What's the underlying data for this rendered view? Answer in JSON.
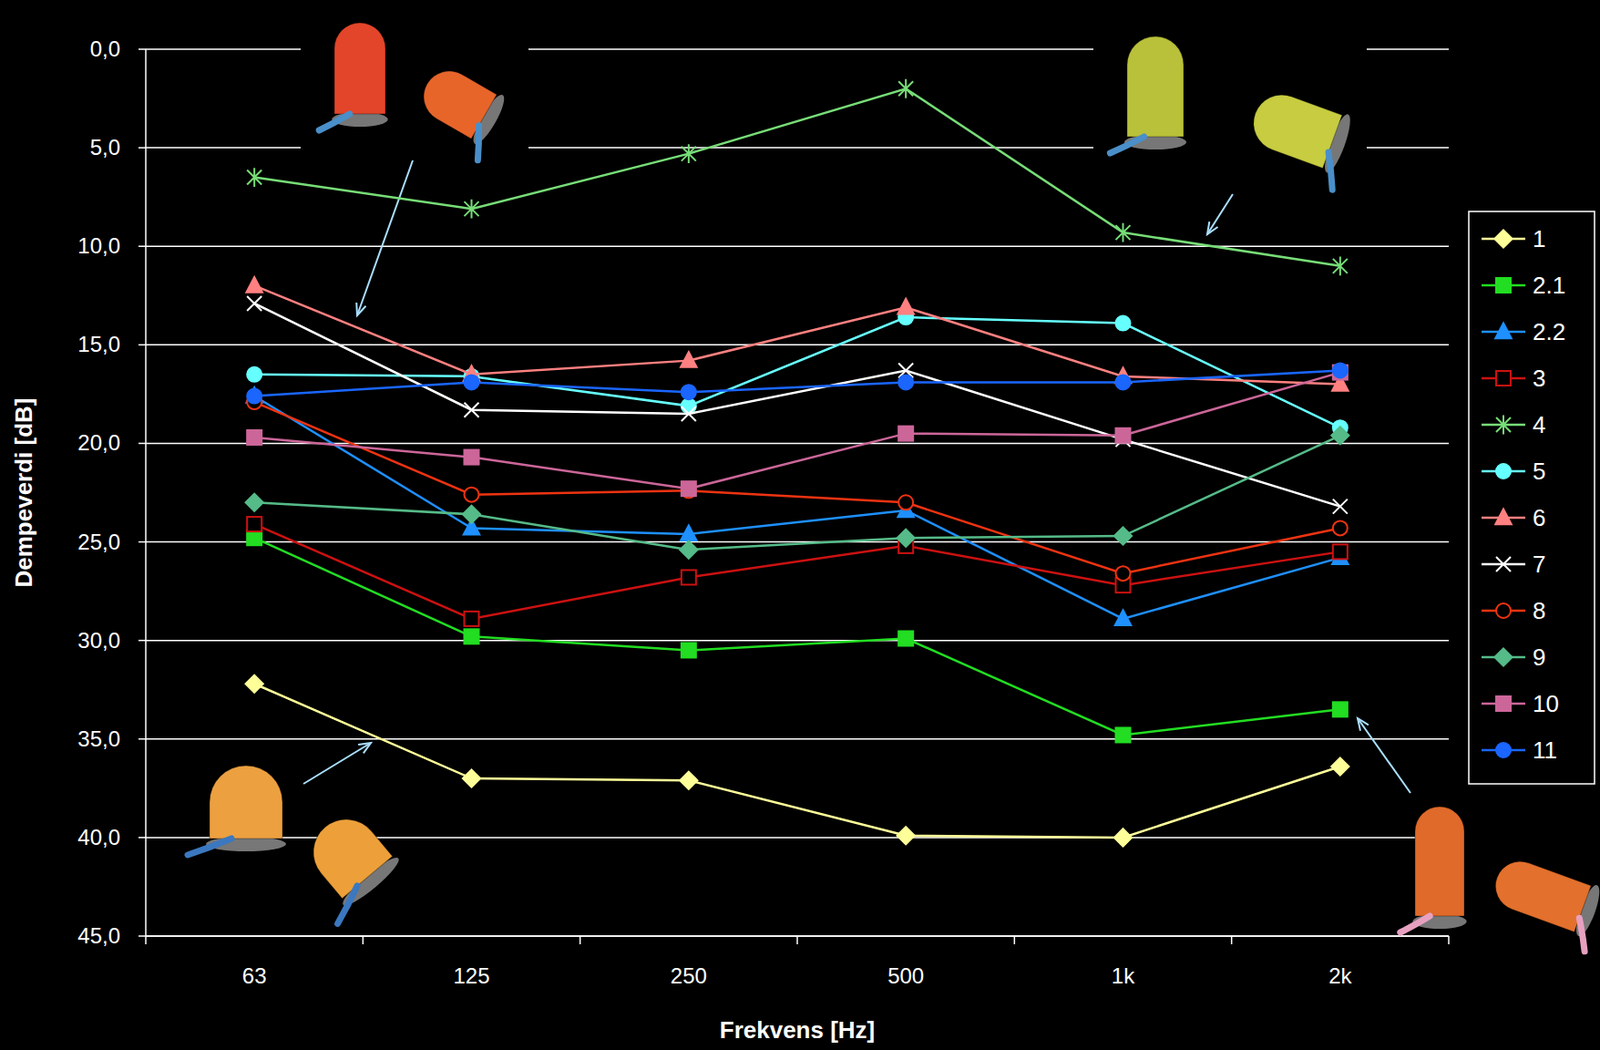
{
  "chart_data": {
    "type": "line",
    "x_label": "Frekvens [Hz]",
    "y_label": "Dempeverdi [dB]",
    "categories": [
      "63",
      "125",
      "250",
      "500",
      "1k",
      "2k"
    ],
    "ylim": [
      0,
      45
    ],
    "yticks": [
      {
        "value": 0,
        "label": "0,0"
      },
      {
        "value": 5,
        "label": "5,0"
      },
      {
        "value": 10,
        "label": "10,0"
      },
      {
        "value": 15,
        "label": "15,0"
      },
      {
        "value": 20,
        "label": "20,0"
      },
      {
        "value": 25,
        "label": "25,0"
      },
      {
        "value": 30,
        "label": "30,0"
      },
      {
        "value": 35,
        "label": "35,0"
      },
      {
        "value": 40,
        "label": "40,0"
      },
      {
        "value": 45,
        "label": "45,0"
      }
    ],
    "grid": true,
    "legend": "right",
    "series": [
      {
        "name": "1",
        "color": "#ffff99",
        "marker": "diamond",
        "values": [
          32.2,
          37.0,
          37.1,
          39.9,
          40.0,
          36.4
        ]
      },
      {
        "name": "2.1",
        "color": "#22dd22",
        "marker": "square",
        "values": [
          24.8,
          29.8,
          30.5,
          29.9,
          34.8,
          33.5
        ]
      },
      {
        "name": "2.2",
        "color": "#1e90ff",
        "marker": "triangle",
        "values": [
          17.6,
          24.3,
          24.6,
          23.4,
          28.9,
          25.8
        ]
      },
      {
        "name": "3",
        "color": "#cc1111",
        "marker": "square-open",
        "values": [
          24.1,
          28.9,
          26.8,
          25.2,
          27.2,
          25.5
        ]
      },
      {
        "name": "4",
        "color": "#77dd77",
        "marker": "asterisk",
        "values": [
          6.5,
          8.1,
          5.3,
          2.0,
          9.3,
          11.0
        ]
      },
      {
        "name": "5",
        "color": "#66ffff",
        "marker": "circle",
        "values": [
          16.5,
          16.6,
          18.1,
          13.6,
          13.9,
          19.2
        ]
      },
      {
        "name": "6",
        "color": "#ff8080",
        "marker": "triangle",
        "values": [
          12.0,
          16.5,
          15.8,
          13.1,
          16.6,
          17.0
        ]
      },
      {
        "name": "7",
        "color": "#ffffff",
        "marker": "x",
        "values": [
          12.9,
          18.3,
          18.5,
          16.3,
          19.8,
          23.2
        ]
      },
      {
        "name": "8",
        "color": "#ee3311",
        "marker": "circle-open",
        "values": [
          17.9,
          22.6,
          22.4,
          23.0,
          26.6,
          24.3
        ]
      },
      {
        "name": "9",
        "color": "#55bb88",
        "marker": "diamond",
        "values": [
          23.0,
          23.6,
          25.4,
          24.8,
          24.7,
          19.6
        ]
      },
      {
        "name": "10",
        "color": "#cc6699",
        "marker": "square",
        "values": [
          19.7,
          20.7,
          22.3,
          19.5,
          19.6,
          16.4
        ]
      },
      {
        "name": "11",
        "color": "#1a66ff",
        "marker": "circle",
        "values": [
          17.6,
          16.9,
          17.4,
          16.9,
          16.9,
          16.3
        ]
      }
    ]
  }
}
